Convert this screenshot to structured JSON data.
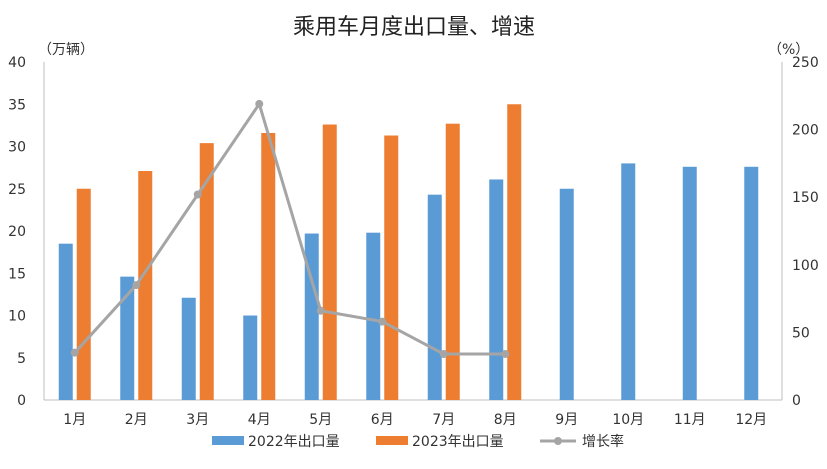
{
  "chart_data": {
    "type": "bar",
    "title": "乘用车月度出口量、增速",
    "y_left_unit": "（万辆）",
    "y_right_unit": "（%）",
    "categories": [
      "1月",
      "2月",
      "3月",
      "4月",
      "5月",
      "6月",
      "7月",
      "8月",
      "9月",
      "10月",
      "11月",
      "12月"
    ],
    "ylim_left": [
      0,
      40
    ],
    "yticks_left": [
      0,
      5,
      10,
      15,
      20,
      25,
      30,
      35,
      40
    ],
    "ylim_right": [
      0,
      250
    ],
    "yticks_right": [
      0,
      50,
      100,
      150,
      200,
      250
    ],
    "grid": false,
    "legend_position": "bottom",
    "series": [
      {
        "name": "2022年出口量",
        "type": "bar",
        "axis": "left",
        "color": "#5B9BD5",
        "values": [
          18.5,
          14.6,
          12.1,
          10.0,
          19.7,
          19.8,
          24.3,
          26.1,
          25.0,
          28.0,
          27.6,
          27.6
        ]
      },
      {
        "name": "2023年出口量",
        "type": "bar",
        "axis": "left",
        "color": "#ED7D31",
        "values": [
          25.0,
          27.1,
          30.4,
          31.6,
          32.6,
          31.3,
          32.7,
          35.0,
          null,
          null,
          null,
          null
        ]
      },
      {
        "name": "增长率",
        "type": "line",
        "axis": "right",
        "color": "#A5A5A5",
        "values": [
          35,
          85,
          152,
          219,
          66,
          58,
          34,
          34,
          null,
          null,
          null,
          null
        ]
      }
    ]
  }
}
